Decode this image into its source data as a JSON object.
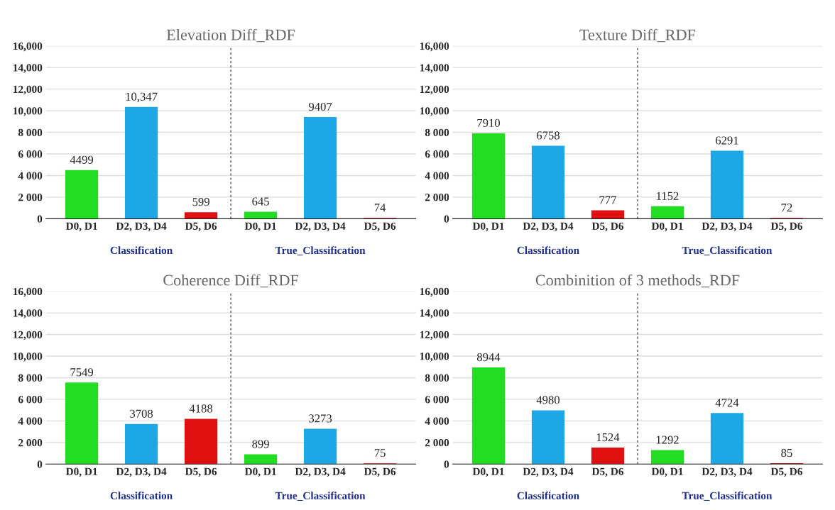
{
  "chart_data": [
    {
      "type": "bar",
      "title": "Elevation Diff_RDF",
      "categories": [
        "D0, D1",
        "D2, D3, D4",
        "D5, D6",
        "D0, D1",
        "D2, D3, D4",
        "D5, D6"
      ],
      "values": [
        4499,
        10347,
        599,
        645,
        9407,
        74
      ],
      "value_labels": [
        "4499",
        "10,347",
        "599",
        "645",
        "9407",
        "74"
      ],
      "colors": [
        "#22dd22",
        "#1ea7e6",
        "#e01010",
        "#22dd22",
        "#1ea7e6",
        "#e01010"
      ],
      "ylim": [
        0,
        16000
      ],
      "yticks": [
        0,
        {
          "value": 2000,
          "label": "2 000"
        },
        {
          "value": 4000,
          "label": "4 000"
        },
        {
          "value": 6000,
          "label": "6 000"
        },
        {
          "value": 8000,
          "label": "8 000"
        },
        {
          "value": 10000,
          "label": "10,000"
        },
        {
          "value": 12000,
          "label": "12,000"
        },
        {
          "value": 14000,
          "label": "14,000"
        },
        {
          "value": 16000,
          "label": "16,000"
        }
      ],
      "grid": "y",
      "annotations": [
        "Classification",
        "True_Classification"
      ]
    },
    {
      "type": "bar",
      "title": "Texture Diff_RDF",
      "categories": [
        "D0, D1",
        "D2, D3, D4",
        "D5, D6",
        "D0, D1",
        "D2, D3, D4",
        "D5, D6"
      ],
      "values": [
        7910,
        6758,
        777,
        1152,
        6291,
        72
      ],
      "value_labels": [
        "7910",
        "6758",
        "777",
        "1152",
        "6291",
        "72"
      ],
      "colors": [
        "#22dd22",
        "#1ea7e6",
        "#e01010",
        "#22dd22",
        "#1ea7e6",
        "#e01010"
      ],
      "ylim": [
        0,
        16000
      ],
      "yticks": [
        0,
        {
          "value": 2000,
          "label": "2 000"
        },
        {
          "value": 4000,
          "label": "4 000"
        },
        {
          "value": 6000,
          "label": "6 000"
        },
        {
          "value": 8000,
          "label": "8 000"
        },
        {
          "value": 10000,
          "label": "10,000"
        },
        {
          "value": 12000,
          "label": "12,000"
        },
        {
          "value": 14000,
          "label": "14,000"
        },
        {
          "value": 16000,
          "label": "16,000"
        }
      ],
      "grid": "y",
      "annotations": [
        "Classification",
        "True_Classification"
      ]
    },
    {
      "type": "bar",
      "title": "Coherence Diff_RDF",
      "categories": [
        "D0, D1",
        "D2, D3, D4",
        "D5, D6",
        "D0, D1",
        "D2, D3, D4",
        "D5, D6"
      ],
      "values": [
        7549,
        3708,
        4188,
        899,
        3273,
        75
      ],
      "value_labels": [
        "7549",
        "3708",
        "4188",
        "899",
        "3273",
        "75"
      ],
      "colors": [
        "#22dd22",
        "#1ea7e6",
        "#e01010",
        "#22dd22",
        "#1ea7e6",
        "#e01010"
      ],
      "ylim": [
        0,
        16000
      ],
      "yticks": [
        0,
        {
          "value": 2000,
          "label": "2 000"
        },
        {
          "value": 4000,
          "label": "4 000"
        },
        {
          "value": 6000,
          "label": "6 000"
        },
        {
          "value": 8000,
          "label": "8 000"
        },
        {
          "value": 10000,
          "label": "10,000"
        },
        {
          "value": 12000,
          "label": "12,000"
        },
        {
          "value": 14000,
          "label": "14,000"
        },
        {
          "value": 16000,
          "label": "16,000"
        }
      ],
      "grid": "y",
      "annotations": [
        "Classification",
        "True_Classification"
      ]
    },
    {
      "type": "bar",
      "title": "Combinition of 3 methods_RDF",
      "categories": [
        "D0, D1",
        "D2, D3, D4",
        "D5, D6",
        "D0, D1",
        "D2, D3, D4",
        "D5, D6"
      ],
      "values": [
        8944,
        4980,
        1524,
        1292,
        4724,
        85
      ],
      "value_labels": [
        "8944",
        "4980",
        "1524",
        "1292",
        "4724",
        "85"
      ],
      "colors": [
        "#22dd22",
        "#1ea7e6",
        "#e01010",
        "#22dd22",
        "#1ea7e6",
        "#e01010"
      ],
      "ylim": [
        0,
        16000
      ],
      "yticks": [
        0,
        {
          "value": 2000,
          "label": "2 000"
        },
        {
          "value": 4000,
          "label": "4 000"
        },
        {
          "value": 6000,
          "label": "6 000"
        },
        {
          "value": 8000,
          "label": "8 000"
        },
        {
          "value": 10000,
          "label": "10,000"
        },
        {
          "value": 12000,
          "label": "12,000"
        },
        {
          "value": 14000,
          "label": "14,000"
        },
        {
          "value": 16000,
          "label": "16,000"
        }
      ],
      "grid": "y",
      "annotations": [
        "Classification",
        "True_Classification"
      ]
    }
  ]
}
